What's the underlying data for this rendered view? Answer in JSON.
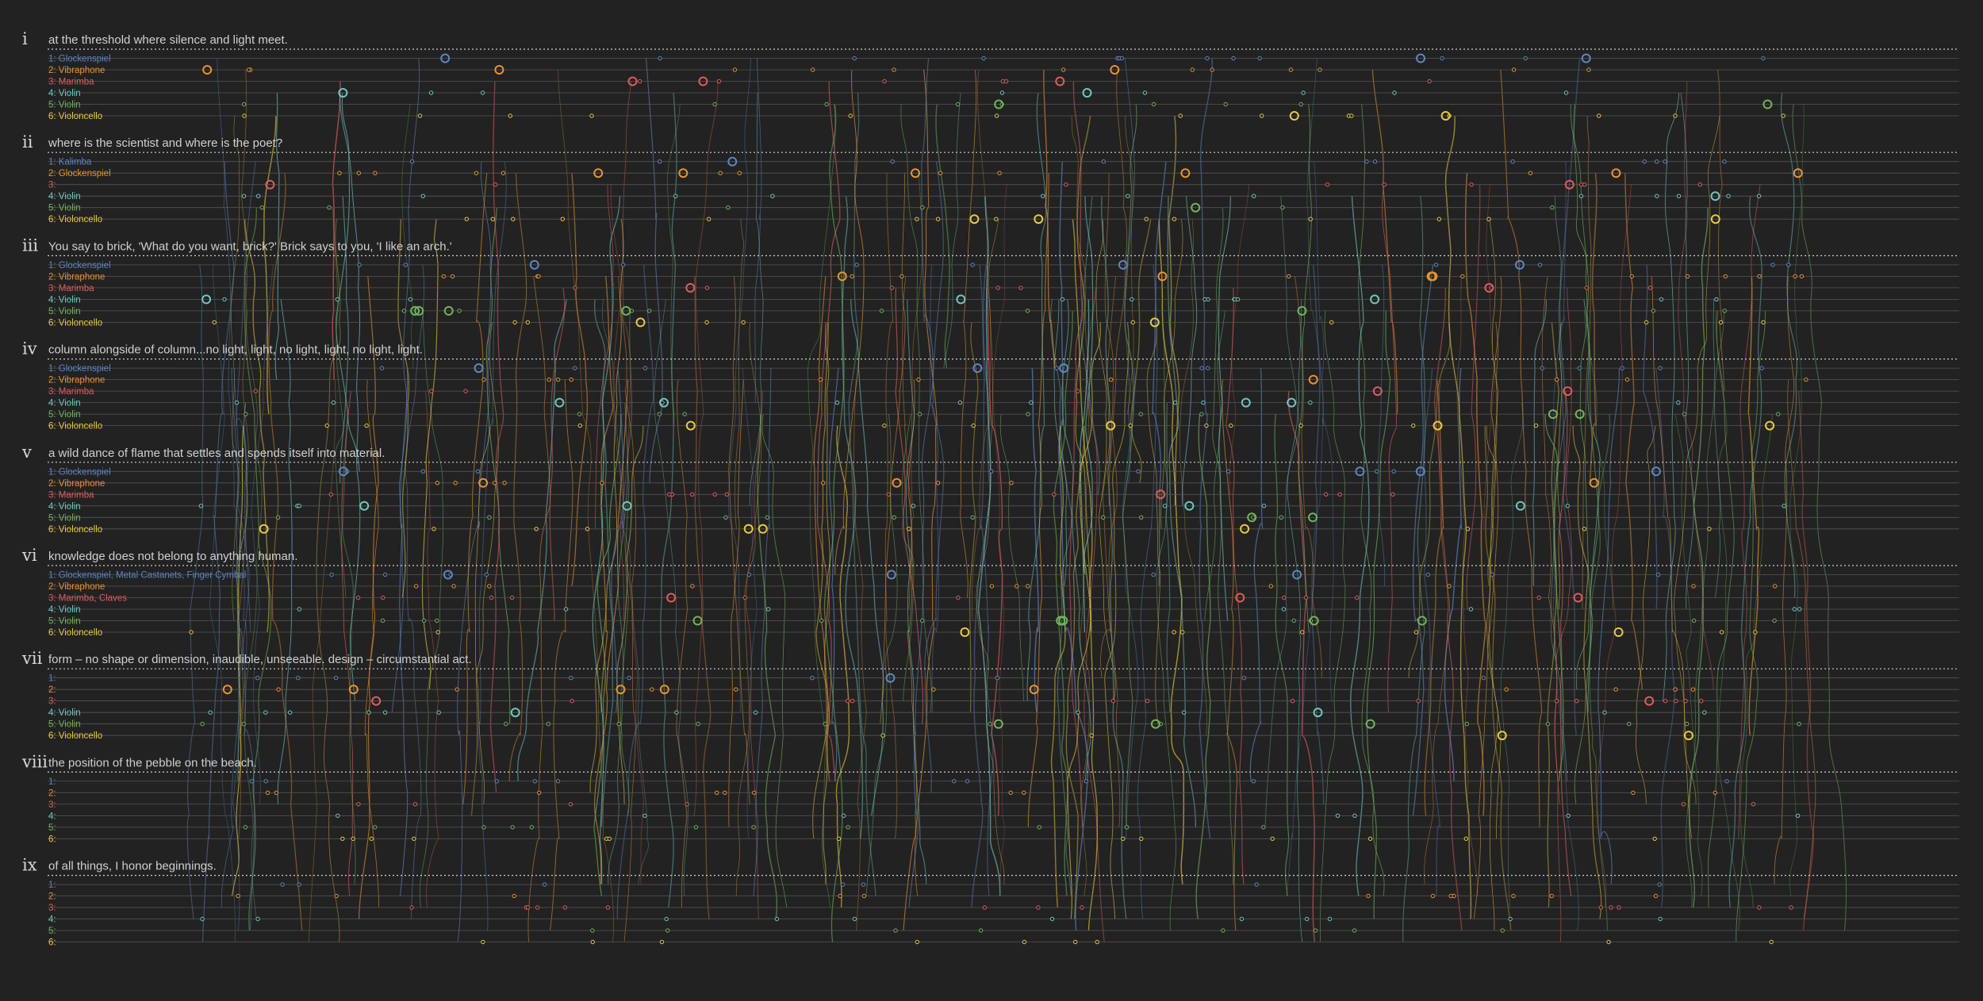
{
  "colors": {
    "background": "#222222",
    "glockenspiel": "#5b86c4",
    "vibraphone": "#e9922f",
    "marimba": "#e05b5b",
    "violin4": "#6fc7bf",
    "violin5": "#6fb45a",
    "violoncello": "#e9c940",
    "text": "#d0d0d0"
  },
  "sections": [
    {
      "numeral": "i",
      "title": "at the threshold where silence and light meet.",
      "rows": [
        "1: Glockenspiel",
        "2: Vibraphone",
        "3: Marimba",
        "4: Violin",
        "5: Violin",
        "6: Violoncello"
      ]
    },
    {
      "numeral": "ii",
      "title": "where is the scientist and where is the poet?",
      "rows": [
        "1: Kalimba",
        "2: Glockenspiel",
        "3:",
        "4: Violin",
        "5: Violin",
        "6: Violoncello"
      ]
    },
    {
      "numeral": "iii",
      "title": "You say to brick, 'What do you want, brick?' Brick says to you, 'I like an arch.'",
      "rows": [
        "1: Glockenspiel",
        "2: Vibraphone",
        "3: Marimba",
        "4: Violin",
        "5: Violin",
        "6: Violoncello"
      ]
    },
    {
      "numeral": "iv",
      "title": "column alongside of column...no light, light, no light, light, no light, light.",
      "rows": [
        "1: Glockenspiel",
        "2: Vibraphone",
        "3: Marimba",
        "4: Violin",
        "5: Violin",
        "6: Violoncello"
      ]
    },
    {
      "numeral": "v",
      "title": "a wild dance of flame that settles and spends itself into material.",
      "rows": [
        "1: Glockenspiel",
        "2: Vibraphone",
        "3: Marimba",
        "4: Violin",
        "5: Violin",
        "6: Violoncello"
      ]
    },
    {
      "numeral": "vi",
      "title": "knowledge does not belong to anything human.",
      "rows": [
        "1: Glockenspiel, Metal Castanets, Finger Cymbal",
        "2: Vibraphone",
        "3: Marimba, Claves",
        "4: Violin",
        "5: Violin",
        "6: Violoncello"
      ]
    },
    {
      "numeral": "vii",
      "title": "form – no shape or dimension, inaudible, unseeable. design – circumstantial act.",
      "rows": [
        "1:",
        "2:",
        "3:",
        "4: Violin",
        "5: Violin",
        "6: Violoncello"
      ]
    },
    {
      "numeral": "viii",
      "title": "the position of the pebble on the beach.",
      "rows": [
        "1:",
        "2:",
        "3:",
        "4:",
        "5:",
        "6:"
      ]
    },
    {
      "numeral": "ix",
      "title": "of all things, I honor beginnings.",
      "rows": [
        "1:",
        "2:",
        "3:",
        "4:",
        "5:",
        "6:"
      ]
    }
  ]
}
